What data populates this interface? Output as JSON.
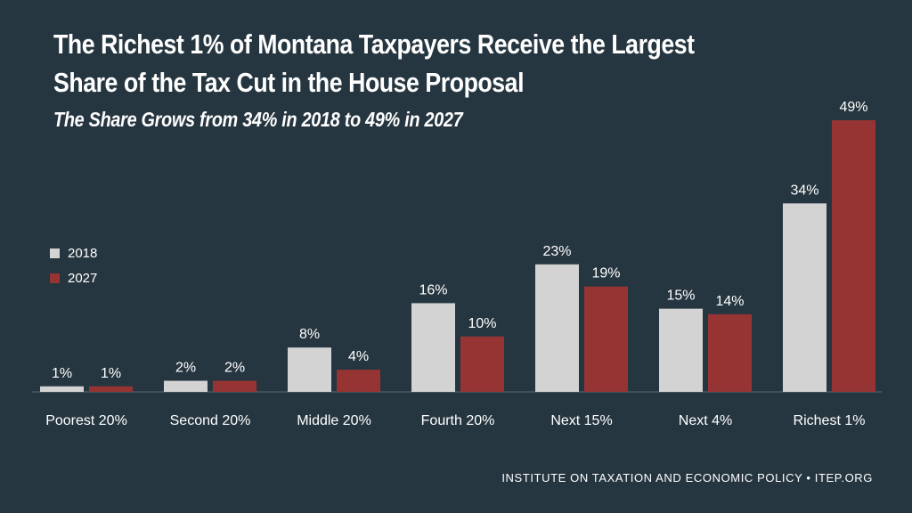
{
  "chart_data": {
    "type": "bar",
    "title": "The Richest 1% of Montana Taxpayers Receive the Largest Share of the Tax Cut in the House Proposal",
    "subtitle": "The Share Grows from 34% in 2018 to 49% in 2027",
    "categories": [
      "Poorest 20%",
      "Second 20%",
      "Middle 20%",
      "Fourth 20%",
      "Next 15%",
      "Next 4%",
      "Richest 1%"
    ],
    "series": [
      {
        "name": "2018",
        "color": "#d3d3d3",
        "values": [
          1,
          2,
          8,
          16,
          23,
          15,
          34
        ],
        "labels": [
          "1%",
          "2%",
          "8%",
          "16%",
          "23%",
          "15%",
          "34%"
        ]
      },
      {
        "name": "2027",
        "color": "#963434",
        "values": [
          1,
          2,
          4,
          10,
          19,
          14,
          49
        ],
        "labels": [
          "1%",
          "2%",
          "4%",
          "10%",
          "19%",
          "14%",
          "49%"
        ]
      }
    ],
    "ylim": [
      0,
      49
    ],
    "legend_position": "left",
    "grid": false
  },
  "footer": "INSTITUTE ON TAXATION AND ECONOMIC POLICY • ITEP.ORG"
}
